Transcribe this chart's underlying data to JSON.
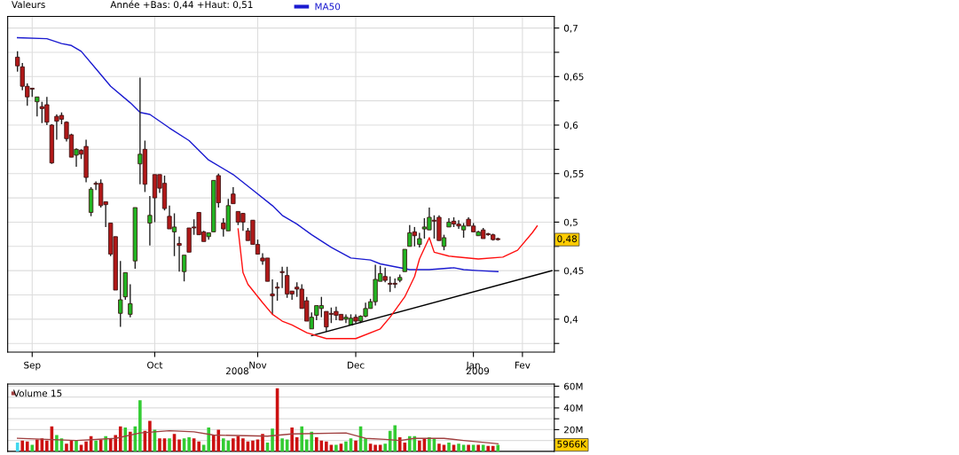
{
  "chart_data": [
    {
      "type": "candlestick",
      "categories": [
        null,
        null,
        null,
        "Sep",
        null,
        null,
        null,
        null,
        null,
        null,
        null,
        null,
        null,
        null,
        null,
        null,
        null,
        null,
        null,
        null,
        null,
        null,
        null,
        null,
        null,
        null,
        null,
        null,
        "Oct",
        null,
        null,
        null,
        null,
        null,
        null,
        null,
        null,
        null,
        null,
        null,
        null,
        null,
        null,
        null,
        null,
        null,
        null,
        null,
        null,
        "Nov",
        null,
        null,
        null,
        null,
        null,
        null,
        null,
        null,
        null,
        null,
        null,
        null,
        null,
        null,
        null,
        null,
        null,
        null,
        null,
        "Dec",
        null,
        null,
        null,
        null,
        null,
        null,
        null,
        null,
        null,
        null,
        null,
        null,
        null,
        null,
        null,
        null,
        null,
        null,
        null,
        null,
        null,
        null,
        null,
        "Jan",
        null,
        null,
        null,
        null,
        null,
        null,
        null,
        null,
        null,
        "Fev",
        null,
        null,
        null,
        null,
        null,
        null
      ],
      "ohlc": [
        [
          0.67,
          0.676,
          0.655,
          0.661
        ],
        [
          0.66,
          0.664,
          0.636,
          0.64
        ],
        [
          0.64,
          0.643,
          0.62,
          0.629
        ],
        [
          0.638,
          0.638,
          0.629,
          0.637
        ],
        [
          0.624,
          0.629,
          0.609,
          0.629
        ],
        [
          0.619,
          0.624,
          0.602,
          0.617
        ],
        [
          0.621,
          0.629,
          0.6,
          0.603
        ],
        [
          0.6,
          0.601,
          0.56,
          0.561
        ],
        [
          0.609,
          0.611,
          0.585,
          0.604
        ],
        [
          0.61,
          0.613,
          0.601,
          0.606
        ],
        [
          0.603,
          0.604,
          0.583,
          0.586
        ],
        [
          0.59,
          0.591,
          0.567,
          0.567
        ],
        [
          0.569,
          0.576,
          0.557,
          0.575
        ],
        [
          0.574,
          0.575,
          0.565,
          0.57
        ],
        [
          0.578,
          0.585,
          0.541,
          0.546
        ],
        [
          0.51,
          0.536,
          0.506,
          0.534
        ],
        [
          0.54,
          0.542,
          0.533,
          0.539
        ],
        [
          0.54,
          0.544,
          0.515,
          0.517
        ],
        [
          0.521,
          0.521,
          0.495,
          0.518
        ],
        [
          0.499,
          0.499,
          0.465,
          0.467
        ],
        [
          0.485,
          0.485,
          0.43,
          0.43
        ],
        [
          0.406,
          0.46,
          0.392,
          0.42
        ],
        [
          0.423,
          0.448,
          0.42,
          0.448
        ],
        [
          0.405,
          0.436,
          0.402,
          0.416
        ],
        [
          0.46,
          0.515,
          0.452,
          0.515
        ],
        [
          0.56,
          0.649,
          0.539,
          0.57
        ],
        [
          0.575,
          0.584,
          0.531,
          0.539
        ],
        [
          0.499,
          0.527,
          0.476,
          0.507
        ],
        [
          0.549,
          0.549,
          0.5,
          0.525
        ],
        [
          0.549,
          0.549,
          0.53,
          0.535
        ],
        [
          0.54,
          0.548,
          0.512,
          0.514
        ],
        [
          0.506,
          0.517,
          0.493,
          0.493
        ],
        [
          0.49,
          0.509,
          0.465,
          0.495
        ],
        [
          0.478,
          0.485,
          0.449,
          0.476
        ],
        [
          0.449,
          0.466,
          0.439,
          0.466
        ],
        [
          0.494,
          0.494,
          0.469,
          0.469
        ],
        [
          0.495,
          0.503,
          0.487,
          0.494
        ],
        [
          0.51,
          0.51,
          0.487,
          0.487
        ],
        [
          0.49,
          0.491,
          0.48,
          0.48
        ],
        [
          0.485,
          0.489,
          0.482,
          0.489
        ],
        [
          0.49,
          0.543,
          0.49,
          0.543
        ],
        [
          0.548,
          0.55,
          0.515,
          0.52
        ],
        [
          0.499,
          0.504,
          0.485,
          0.493
        ],
        [
          0.491,
          0.524,
          0.491,
          0.517
        ],
        [
          0.529,
          0.536,
          0.519,
          0.519
        ],
        [
          0.511,
          0.511,
          0.497,
          0.5
        ],
        [
          0.509,
          0.509,
          0.491,
          0.5
        ],
        [
          0.491,
          0.494,
          0.481,
          0.481
        ],
        [
          0.502,
          0.502,
          0.477,
          0.477
        ],
        [
          0.477,
          0.482,
          0.467,
          0.467
        ],
        [
          0.463,
          0.468,
          0.456,
          0.46
        ],
        [
          0.463,
          0.463,
          0.439,
          0.439
        ],
        [
          0.426,
          0.441,
          0.405,
          0.424
        ],
        [
          0.433,
          0.438,
          0.419,
          0.432
        ],
        [
          0.449,
          0.454,
          0.432,
          0.448
        ],
        [
          0.445,
          0.454,
          0.422,
          0.426
        ],
        [
          0.429,
          0.429,
          0.42,
          0.426
        ],
        [
          0.433,
          0.438,
          0.423,
          0.431
        ],
        [
          0.431,
          0.436,
          0.411,
          0.411
        ],
        [
          0.419,
          0.423,
          0.398,
          0.398
        ],
        [
          0.39,
          0.407,
          0.39,
          0.402
        ],
        [
          0.404,
          0.414,
          0.399,
          0.414
        ],
        [
          0.411,
          0.423,
          0.402,
          0.414
        ],
        [
          0.408,
          0.408,
          0.387,
          0.392
        ],
        [
          0.406,
          0.412,
          0.396,
          0.405
        ],
        [
          0.408,
          0.413,
          0.399,
          0.404
        ],
        [
          0.405,
          0.405,
          0.399,
          0.399
        ],
        [
          0.4,
          0.405,
          0.396,
          0.402
        ],
        [
          0.394,
          0.405,
          0.394,
          0.401
        ],
        [
          0.402,
          0.405,
          0.396,
          0.398
        ],
        [
          0.398,
          0.404,
          0.396,
          0.403
        ],
        [
          0.403,
          0.417,
          0.402,
          0.411
        ],
        [
          0.411,
          0.421,
          0.411,
          0.418
        ],
        [
          0.418,
          0.456,
          0.414,
          0.441
        ],
        [
          0.439,
          0.455,
          0.439,
          0.447
        ],
        [
          0.444,
          0.453,
          0.438,
          0.44
        ],
        [
          0.437,
          0.444,
          0.428,
          0.436
        ],
        [
          0.437,
          0.442,
          0.432,
          0.436
        ],
        [
          0.44,
          0.446,
          0.438,
          0.443
        ],
        [
          0.449,
          0.472,
          0.449,
          0.472
        ],
        [
          0.475,
          0.497,
          0.475,
          0.489
        ],
        [
          0.49,
          0.495,
          0.475,
          0.486
        ],
        [
          0.477,
          0.489,
          0.474,
          0.483
        ],
        [
          0.493,
          0.504,
          0.483,
          0.495
        ],
        [
          0.492,
          0.515,
          0.492,
          0.505
        ],
        [
          0.502,
          0.507,
          0.483,
          0.501
        ],
        [
          0.505,
          0.507,
          0.481,
          0.481
        ],
        [
          0.475,
          0.487,
          0.471,
          0.484
        ],
        [
          0.495,
          0.504,
          0.495,
          0.5
        ],
        [
          0.501,
          0.505,
          0.495,
          0.498
        ],
        [
          0.498,
          0.502,
          0.493,
          0.496
        ],
        [
          0.492,
          0.499,
          0.484,
          0.496
        ],
        [
          0.503,
          0.505,
          0.496,
          0.496
        ],
        [
          0.496,
          0.499,
          0.49,
          0.49
        ],
        [
          0.486,
          0.491,
          0.486,
          0.49
        ],
        [
          0.492,
          0.494,
          0.483,
          0.483
        ],
        [
          0.488,
          0.489,
          0.486,
          0.487
        ],
        [
          0.487,
          0.488,
          0.481,
          0.482
        ],
        [
          0.483,
          0.484,
          0.481,
          0.482
        ],
        null,
        null,
        null,
        null,
        null,
        null,
        null,
        null,
        null,
        null,
        null
      ],
      "colors": [
        "#b01818",
        "#b01818",
        "#b01818",
        "#b01818",
        "#22b422",
        "#b01818",
        "#b01818",
        "#b01818",
        "#b01818",
        "#b01818",
        "#b01818",
        "#b01818",
        "#22b422",
        "#b01818",
        "#b01818",
        "#22b422",
        "#b01818",
        "#b01818",
        "#b01818",
        "#b01818",
        "#b01818",
        "#22b422",
        "#22b422",
        "#22b422",
        "#22b422",
        "#22b422",
        "#b01818",
        "#22b422",
        "#b01818",
        "#b01818",
        "#b01818",
        "#b01818",
        "#22b422",
        "#b01818",
        "#22b422",
        "#b01818",
        "#b01818",
        "#b01818",
        "#b01818",
        "#22b422",
        "#22b422",
        "#b01818",
        "#b01818",
        "#22b422",
        "#b01818",
        "#b01818",
        "#b01818",
        "#b01818",
        "#b01818",
        "#b01818",
        "#b01818",
        "#b01818",
        "#b01818",
        "#b01818",
        "#b01818",
        "#b01818",
        "#b01818",
        "#b01818",
        "#b01818",
        "#b01818",
        "#22b422",
        "#22b422",
        "#22b422",
        "#b01818",
        "#b01818",
        "#b01818",
        "#b01818",
        "#22b422",
        "#22b422",
        "#b01818",
        "#22b422",
        "#22b422",
        "#22b422",
        "#22b422",
        "#22b422",
        "#b01818",
        "#b01818",
        "#b01818",
        "#22b422",
        "#22b422",
        "#22b422",
        "#b01818",
        "#22b422",
        "#22b422",
        "#22b422",
        "#b01818",
        "#b01818",
        "#22b422",
        "#22b422",
        "#b01818",
        "#b01818",
        "#22b422",
        "#b01818",
        "#b01818",
        "#22b422",
        "#b01818",
        "#b01818",
        "#b01818",
        "#b01818",
        null,
        null,
        null,
        null,
        null,
        null,
        null,
        null,
        null,
        null,
        null
      ],
      "series": [
        {
          "name": "MA50",
          "type": "line",
          "color": "#1a1ad0",
          "values": [
            0.69,
            null,
            null,
            null,
            null,
            null,
            0.689,
            null,
            null,
            0.684,
            null,
            0.682,
            null,
            0.676,
            null,
            null,
            0.658,
            null,
            null,
            0.64,
            null,
            null,
            null,
            0.623,
            null,
            0.613,
            null,
            0.611,
            null,
            null,
            null,
            0.597,
            null,
            null,
            null,
            0.584,
            null,
            null,
            null,
            0.564,
            null,
            null,
            null,
            null,
            0.549,
            null,
            null,
            null,
            0.533,
            null,
            null,
            null,
            0.517,
            null,
            0.507,
            null,
            null,
            0.498,
            null,
            null,
            0.487,
            null,
            null,
            null,
            0.474,
            null,
            null,
            null,
            0.463,
            null,
            null,
            null,
            0.461,
            null,
            0.457,
            null,
            null,
            0.454,
            null,
            null,
            0.451,
            null,
            null,
            null,
            0.451,
            null,
            null,
            null,
            null,
            0.453,
            null,
            0.451,
            null,
            null,
            0.45,
            null,
            null,
            null,
            0.449,
            null,
            null,
            null,
            null,
            null,
            null,
            null,
            null,
            null,
            null,
            null
          ]
        },
        {
          "type": "line",
          "color": "#000000",
          "values": [
            null,
            null,
            null,
            null,
            null,
            null,
            null,
            null,
            null,
            null,
            null,
            null,
            null,
            null,
            null,
            null,
            null,
            null,
            null,
            null,
            null,
            null,
            null,
            null,
            null,
            null,
            null,
            null,
            null,
            null,
            null,
            null,
            null,
            null,
            null,
            null,
            null,
            null,
            null,
            null,
            null,
            null,
            null,
            null,
            null,
            null,
            null,
            null,
            null,
            null,
            null,
            null,
            null,
            null,
            null,
            null,
            null,
            null,
            null,
            null,
            0.383,
            null,
            null,
            null,
            null,
            null,
            null,
            null,
            null,
            null,
            null,
            null,
            null,
            null,
            null,
            null,
            null,
            null,
            null,
            null,
            null,
            null,
            null,
            null,
            null,
            null,
            null,
            null,
            null,
            null,
            null,
            null,
            null,
            null,
            null,
            null,
            null,
            null,
            null,
            null,
            null,
            null,
            null,
            null,
            null,
            null,
            null,
            null,
            null,
            0.45
          ]
        },
        {
          "type": "line",
          "color": "#ff1010",
          "values": [
            null,
            null,
            null,
            null,
            null,
            null,
            null,
            null,
            null,
            null,
            null,
            null,
            null,
            null,
            null,
            null,
            null,
            null,
            null,
            null,
            null,
            null,
            null,
            null,
            null,
            null,
            null,
            null,
            null,
            null,
            null,
            null,
            null,
            null,
            null,
            null,
            null,
            null,
            null,
            null,
            null,
            null,
            null,
            null,
            null,
            0.493,
            0.448,
            0.436,
            null,
            null,
            0.417,
            null,
            0.405,
            null,
            0.398,
            null,
            0.394,
            null,
            null,
            0.386,
            null,
            null,
            null,
            0.38,
            null,
            null,
            null,
            null,
            null,
            0.38,
            null,
            null,
            null,
            null,
            0.39,
            null,
            0.402,
            null,
            null,
            0.423,
            null,
            0.444,
            0.462,
            null,
            0.484,
            0.469,
            null,
            null,
            0.465,
            null,
            null,
            null,
            null,
            null,
            0.462,
            null,
            null,
            null,
            null,
            0.464,
            null,
            null,
            0.471,
            null,
            null,
            0.489,
            0.496,
            null,
            null,
            null
          ]
        }
      ],
      "ylim": [
        0.366,
        0.712
      ],
      "yticks": [
        {
          "value": 0.375,
          "label": null
        },
        {
          "value": 0.4,
          "label": "0,4"
        },
        {
          "value": 0.425,
          "label": null
        },
        {
          "value": 0.45,
          "label": "0,45"
        },
        {
          "value": 0.475,
          "label": null
        },
        {
          "value": 0.5,
          "label": "0,5"
        },
        {
          "value": 0.525,
          "label": null
        },
        {
          "value": 0.55,
          "label": "0,55"
        },
        {
          "value": 0.575,
          "label": null
        },
        {
          "value": 0.6,
          "label": "0,6"
        },
        {
          "value": 0.625,
          "label": null
        },
        {
          "value": 0.65,
          "label": "0,65"
        },
        {
          "value": 0.675,
          "label": null
        },
        {
          "value": 0.7,
          "label": "0,7"
        }
      ],
      "grid": true,
      "legend": "top",
      "annotations": [
        "Valeurs",
        "Année +Bas: 0,44 +Haut: 0,51",
        {
          "text": "0,48",
          "y": 0.482
        },
        "2008",
        "2009"
      ]
    },
    {
      "type": "bar",
      "categories": [
        null,
        null,
        null,
        null,
        null,
        null,
        null,
        null,
        null,
        null,
        null,
        null,
        null,
        null,
        null,
        null,
        null,
        null,
        null,
        null,
        null,
        null,
        null,
        null,
        null,
        null,
        null,
        null,
        null,
        null,
        null,
        null,
        null,
        null,
        null,
        null,
        null,
        null,
        null,
        null,
        null,
        null,
        null,
        null,
        null,
        null,
        null,
        null,
        null,
        null,
        null,
        null,
        null,
        null,
        null,
        null,
        null,
        null,
        null,
        null,
        null,
        null,
        null,
        null,
        null,
        null,
        null,
        null,
        null,
        null,
        null,
        null,
        null,
        null,
        null,
        null,
        null,
        null,
        null,
        null,
        null,
        null,
        null,
        null,
        null,
        null,
        null,
        null,
        null,
        null,
        null,
        null,
        null,
        null,
        null,
        null,
        null,
        null,
        null,
        null,
        null,
        null,
        null,
        null,
        null,
        null,
        null,
        null,
        null,
        null
      ],
      "values": [
        8,
        10,
        9,
        6,
        11,
        12,
        10,
        23,
        15,
        12,
        7,
        10,
        10,
        6,
        9,
        14,
        10,
        11,
        14,
        12,
        15,
        23,
        22,
        18,
        23,
        47,
        19,
        28,
        20,
        12,
        12,
        12,
        16,
        11,
        12,
        13,
        12,
        9,
        6,
        22,
        15,
        20,
        12,
        10,
        12,
        14,
        12,
        9,
        10,
        11,
        16,
        8,
        21,
        58,
        12,
        11,
        22,
        13,
        23,
        11,
        18,
        13,
        10,
        9,
        6,
        6,
        7,
        9,
        12,
        10,
        23,
        12,
        7,
        6,
        6,
        7,
        19,
        24,
        13,
        8,
        14,
        14,
        10,
        12,
        13,
        12,
        7,
        6,
        8,
        6,
        7,
        6,
        6,
        6,
        6,
        6,
        5,
        5,
        5.966,
        null,
        null,
        null,
        null,
        null,
        null,
        null,
        null,
        null,
        null,
        null
      ],
      "colors": [
        "#40d8f0",
        "#cc1111",
        "#cc1111",
        "#33cc33",
        "#cc1111",
        "#cc1111",
        "#cc1111",
        "#cc1111",
        "#33cc33",
        "#33cc33",
        "#cc1111",
        "#cc1111",
        "#33cc33",
        "#cc1111",
        "#cc1111",
        "#cc1111",
        "#33cc33",
        "#cc1111",
        "#33cc33",
        "#cc1111",
        "#cc1111",
        "#cc1111",
        "#33cc33",
        "#cc1111",
        "#33cc33",
        "#33cc33",
        "#cc1111",
        "#cc1111",
        "#33cc33",
        "#cc1111",
        "#cc1111",
        "#33cc33",
        "#cc1111",
        "#cc1111",
        "#33cc33",
        "#33cc33",
        "#cc1111",
        "#cc1111",
        "#33cc33",
        "#33cc33",
        "#cc1111",
        "#cc1111",
        "#33cc33",
        "#33cc33",
        "#cc1111",
        "#cc1111",
        "#cc1111",
        "#cc1111",
        "#cc1111",
        "#cc1111",
        "#cc1111",
        "#33cc33",
        "#33cc33",
        "#cc1111",
        "#33cc33",
        "#33cc33",
        "#cc1111",
        "#cc1111",
        "#33cc33",
        "#33cc33",
        "#33cc33",
        "#cc1111",
        "#cc1111",
        "#cc1111",
        "#cc1111",
        "#33cc33",
        "#cc1111",
        "#33cc33",
        "#33cc33",
        "#cc1111",
        "#33cc33",
        "#33cc33",
        "#cc1111",
        "#cc1111",
        "#cc1111",
        "#33cc33",
        "#33cc33",
        "#33cc33",
        "#cc1111",
        "#cc1111",
        "#33cc33",
        "#33cc33",
        "#cc1111",
        "#cc1111",
        "#33cc33",
        "#33cc33",
        "#cc1111",
        "#cc1111",
        "#33cc33",
        "#cc1111",
        "#33cc33",
        "#33cc33",
        "#cc1111",
        "#33cc33",
        "#cc1111",
        "#33cc33",
        "#cc1111",
        "#cc1111",
        "#33cc33",
        null,
        null,
        null,
        null,
        null,
        null,
        null,
        null,
        null,
        null,
        null
      ],
      "series": [
        {
          "name": "Volume 15",
          "type": "line",
          "color": "#a04040",
          "values": [
            12,
            null,
            null,
            null,
            null,
            null,
            null,
            null,
            null,
            null,
            null,
            null,
            10,
            null,
            null,
            null,
            null,
            null,
            null,
            null,
            12,
            null,
            null,
            null,
            null,
            17,
            null,
            null,
            null,
            null,
            null,
            19,
            null,
            null,
            null,
            null,
            18,
            null,
            null,
            null,
            15,
            null,
            null,
            null,
            null,
            null,
            null,
            null,
            null,
            null,
            null,
            14,
            null,
            null,
            null,
            null,
            16,
            null,
            null,
            null,
            null,
            null,
            null,
            null,
            null,
            null,
            null,
            17,
            null,
            null,
            null,
            12,
            null,
            null,
            null,
            11,
            null,
            null,
            10,
            null,
            null,
            12,
            null,
            null,
            null,
            null,
            null,
            12,
            null,
            null,
            null,
            10,
            null,
            null,
            null,
            null,
            null,
            null,
            7,
            null,
            null,
            null,
            null,
            null,
            null,
            null,
            null,
            null,
            null,
            null
          ]
        }
      ],
      "ylim": [
        0,
        62
      ],
      "yticks": [
        {
          "value": 10,
          "label": null
        },
        {
          "value": 20,
          "label": "20M"
        },
        {
          "value": 30,
          "label": null
        },
        {
          "value": 40,
          "label": "40M"
        },
        {
          "value": 50,
          "label": null
        },
        {
          "value": 60,
          "label": "60M"
        }
      ],
      "grid": true,
      "legend": "top left",
      "tick_labels": "y",
      "annotations": [
        {
          "text": "5966K",
          "y": 5.966
        }
      ]
    }
  ]
}
